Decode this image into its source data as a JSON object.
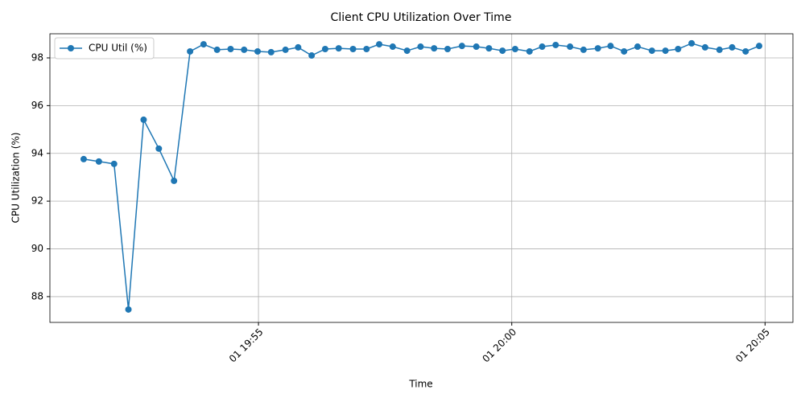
{
  "chart_data": {
    "type": "line",
    "title": "Client CPU Utilization Over Time",
    "x_label": "Time",
    "y_label": "CPU Utilization (%)",
    "x": [
      "19:51:33",
      "19:51:51",
      "19:52:09",
      "19:52:26",
      "19:52:44",
      "19:53:02",
      "19:53:20",
      "19:53:39",
      "19:53:55",
      "19:54:11",
      "19:54:27",
      "19:54:43",
      "19:54:59",
      "19:55:15",
      "19:55:32",
      "19:55:47",
      "19:56:03",
      "19:56:19",
      "19:56:35",
      "19:56:52",
      "19:57:08",
      "19:57:23",
      "19:57:39",
      "19:57:56",
      "19:58:12",
      "19:58:28",
      "19:58:44",
      "19:59:01",
      "19:59:18",
      "19:59:33",
      "19:59:49",
      "20:00:04",
      "20:00:21",
      "20:00:36",
      "20:00:52",
      "20:01:09",
      "20:01:25",
      "20:01:42",
      "20:01:57",
      "20:02:13",
      "20:02:29",
      "20:02:46",
      "20:03:02",
      "20:03:17",
      "20:03:33",
      "20:03:49",
      "20:04:06",
      "20:04:21",
      "20:04:37",
      "20:04:53"
    ],
    "series": [
      {
        "name": "CPU Util (%)",
        "color": "#1f77b4",
        "values": [
          93.76,
          93.66,
          93.56,
          87.46,
          95.41,
          94.2,
          92.85,
          98.27,
          98.57,
          98.34,
          98.37,
          98.34,
          98.27,
          98.24,
          98.34,
          98.44,
          98.1,
          98.37,
          98.4,
          98.37,
          98.37,
          98.57,
          98.47,
          98.3,
          98.47,
          98.4,
          98.37,
          98.5,
          98.47,
          98.4,
          98.3,
          98.37,
          98.27,
          98.47,
          98.54,
          98.47,
          98.34,
          98.4,
          98.5,
          98.27,
          98.47,
          98.3,
          98.3,
          98.37,
          98.61,
          98.44,
          98.34,
          98.44,
          98.27,
          98.5
        ]
      }
    ],
    "xlim": [
      "19:50:53",
      "20:05:33"
    ],
    "xticks": [
      {
        "value": "19:55",
        "label": "01 19:55"
      },
      {
        "value": "20:00",
        "label": "01 20:00"
      },
      {
        "value": "20:05",
        "label": "01 20:05"
      }
    ],
    "ylim": [
      86.92,
      99.01
    ],
    "yticks": [
      88,
      90,
      92,
      94,
      96,
      98
    ],
    "grid": true,
    "legend": "upper-left"
  }
}
